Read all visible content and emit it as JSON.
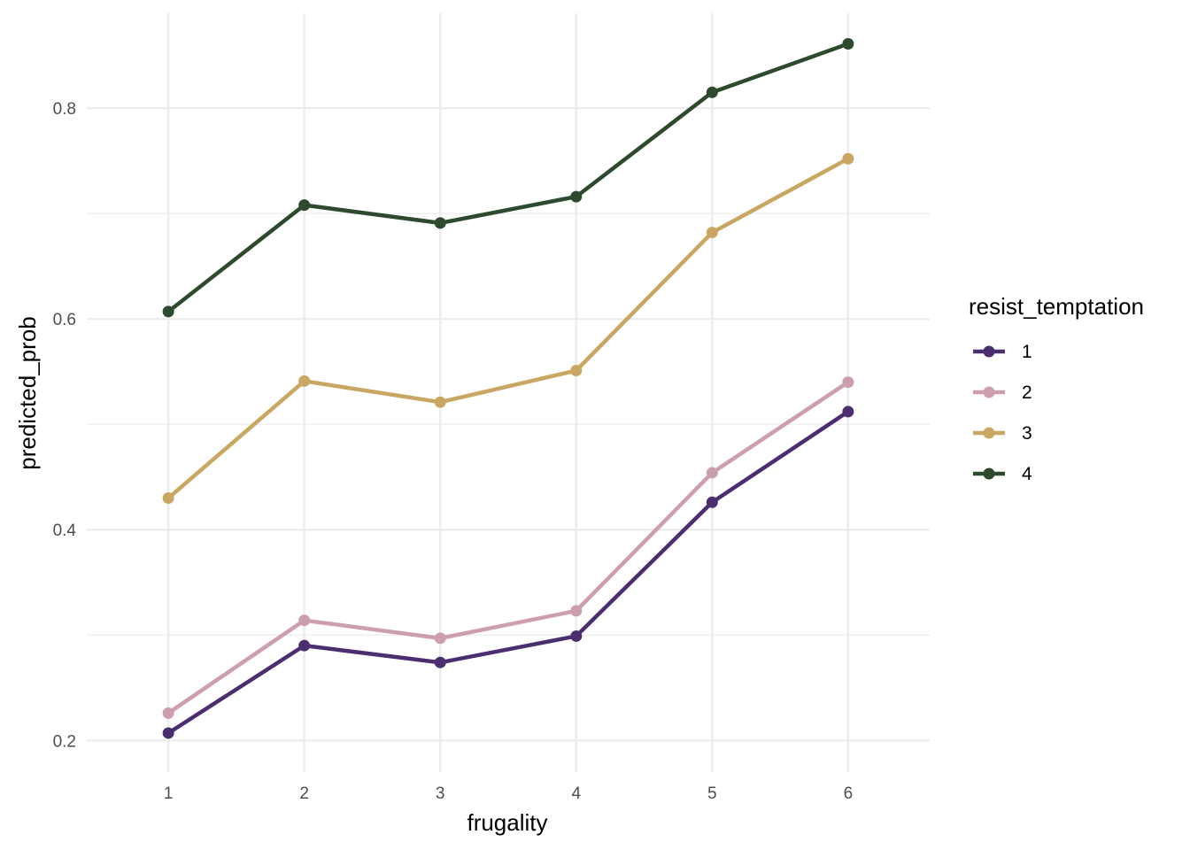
{
  "chart_data": {
    "type": "line",
    "xlabel": "frugality",
    "ylabel": "predicted_prob",
    "x": [
      1,
      2,
      3,
      4,
      5,
      6
    ],
    "x_tick_labels": [
      "1",
      "2",
      "3",
      "4",
      "5",
      "6"
    ],
    "xlim": [
      0.4,
      6.6
    ],
    "ylim": [
      0.17,
      0.89
    ],
    "y_ticks": [
      0.2,
      0.4,
      0.6,
      0.8
    ],
    "y_tick_labels": [
      "0.2",
      "0.4",
      "0.6",
      "0.8"
    ],
    "y_minor_ticks": [
      0.3,
      0.5,
      0.7
    ],
    "grid": true,
    "legend": {
      "title": "resist_temptation",
      "placement": "right"
    },
    "series": [
      {
        "name": "1",
        "color": "#4b2e6f",
        "values": [
          0.207,
          0.29,
          0.274,
          0.299,
          0.426,
          0.512
        ]
      },
      {
        "name": "2",
        "color": "#cc9eb0",
        "values": [
          0.226,
          0.314,
          0.297,
          0.323,
          0.454,
          0.54
        ]
      },
      {
        "name": "3",
        "color": "#c9a661",
        "values": [
          0.43,
          0.541,
          0.521,
          0.551,
          0.682,
          0.752
        ]
      },
      {
        "name": "4",
        "color": "#2d4a2f",
        "values": [
          0.607,
          0.708,
          0.691,
          0.716,
          0.815,
          0.861
        ]
      }
    ]
  }
}
